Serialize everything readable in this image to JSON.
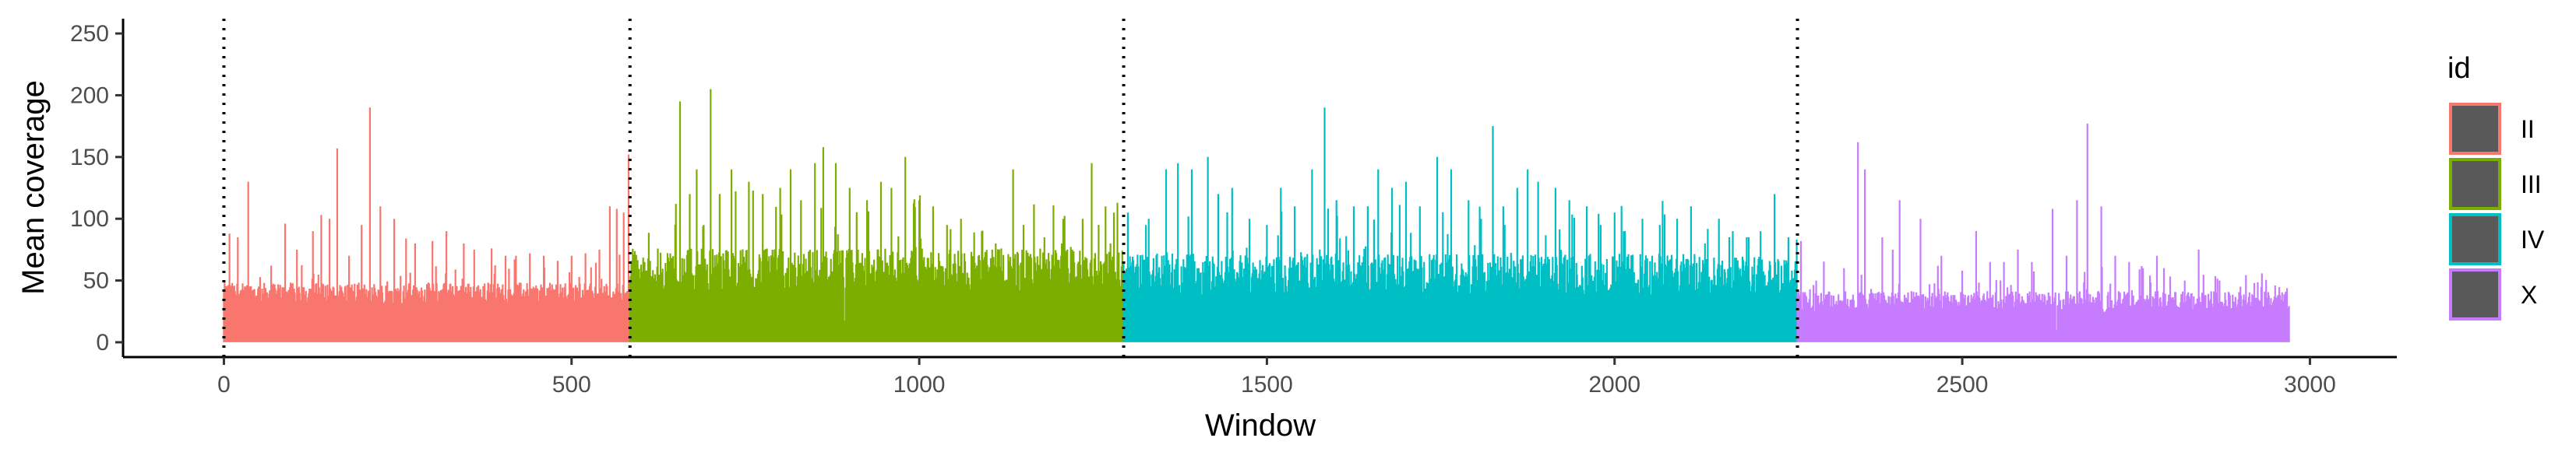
{
  "chart_data": {
    "type": "bar",
    "xlabel": "Window",
    "ylabel": "Mean coverage",
    "xlim": [
      -145,
      3125
    ],
    "ylim": [
      -12,
      262
    ],
    "x_ticks": [
      0,
      500,
      1000,
      1500,
      2000,
      2500,
      3000
    ],
    "y_ticks": [
      0,
      50,
      100,
      150,
      200,
      250
    ],
    "boundaries": [
      0,
      584,
      1294,
      2263
    ],
    "legend_title": "id",
    "legend_position": "right",
    "grid": false,
    "series": [
      {
        "name": "II",
        "color": "#F8766D",
        "start": 0,
        "end": 583,
        "base": 40,
        "spread": 14,
        "peaks": [
          [
            8,
            88
          ],
          [
            20,
            85
          ],
          [
            35,
            130
          ],
          [
            68,
            62
          ],
          [
            88,
            96
          ],
          [
            105,
            75
          ],
          [
            128,
            90
          ],
          [
            140,
            103
          ],
          [
            152,
            100
          ],
          [
            163,
            157
          ],
          [
            180,
            70
          ],
          [
            198,
            95
          ],
          [
            210,
            190
          ],
          [
            225,
            110
          ],
          [
            245,
            100
          ],
          [
            262,
            84
          ],
          [
            275,
            80
          ],
          [
            300,
            82
          ],
          [
            320,
            90
          ],
          [
            345,
            80
          ],
          [
            360,
            75
          ],
          [
            385,
            76
          ],
          [
            405,
            70
          ],
          [
            420,
            70
          ],
          [
            440,
            72
          ],
          [
            460,
            70
          ],
          [
            480,
            66
          ],
          [
            500,
            70
          ],
          [
            520,
            72
          ],
          [
            540,
            75
          ],
          [
            555,
            110
          ],
          [
            565,
            108
          ],
          [
            575,
            105
          ],
          [
            582,
            152
          ]
        ]
      },
      {
        "name": "III",
        "color": "#7CAE00",
        "start": 584,
        "end": 1293,
        "base": 58,
        "spread": 30,
        "peaks": [
          [
            590,
            70
          ],
          [
            605,
            65
          ],
          [
            620,
            55
          ],
          [
            650,
            112
          ],
          [
            656,
            195
          ],
          [
            670,
            120
          ],
          [
            680,
            140
          ],
          [
            690,
            95
          ],
          [
            700,
            205
          ],
          [
            713,
            120
          ],
          [
            730,
            140
          ],
          [
            755,
            130
          ],
          [
            775,
            120
          ],
          [
            800,
            125
          ],
          [
            815,
            140
          ],
          [
            830,
            115
          ],
          [
            850,
            145
          ],
          [
            862,
            158
          ],
          [
            880,
            145
          ],
          [
            900,
            125
          ],
          [
            925,
            115
          ],
          [
            945,
            130
          ],
          [
            960,
            125
          ],
          [
            980,
            150
          ],
          [
            1000,
            115
          ],
          [
            1020,
            110
          ],
          [
            1040,
            95
          ],
          [
            1060,
            100
          ],
          [
            1090,
            90
          ],
          [
            1110,
            80
          ],
          [
            1135,
            140
          ],
          [
            1150,
            95
          ],
          [
            1180,
            85
          ],
          [
            1205,
            80
          ],
          [
            1220,
            75
          ],
          [
            1235,
            100
          ],
          [
            1248,
            145
          ],
          [
            1258,
            95
          ],
          [
            1268,
            110
          ],
          [
            1275,
            80
          ],
          [
            1285,
            113
          ]
        ]
      },
      {
        "name": "IV",
        "color": "#00BFC4",
        "start": 1294,
        "end": 2262,
        "base": 55,
        "spread": 28,
        "peaks": [
          [
            1300,
            105
          ],
          [
            1330,
            100
          ],
          [
            1355,
            140
          ],
          [
            1372,
            145
          ],
          [
            1392,
            140
          ],
          [
            1415,
            150
          ],
          [
            1430,
            120
          ],
          [
            1450,
            125
          ],
          [
            1475,
            100
          ],
          [
            1500,
            95
          ],
          [
            1520,
            125
          ],
          [
            1540,
            110
          ],
          [
            1565,
            140
          ],
          [
            1583,
            190
          ],
          [
            1600,
            115
          ],
          [
            1625,
            110
          ],
          [
            1660,
            140
          ],
          [
            1680,
            125
          ],
          [
            1700,
            130
          ],
          [
            1720,
            110
          ],
          [
            1745,
            150
          ],
          [
            1765,
            140
          ],
          [
            1790,
            115
          ],
          [
            1808,
            100
          ],
          [
            1825,
            175
          ],
          [
            1840,
            110
          ],
          [
            1860,
            125
          ],
          [
            1875,
            140
          ],
          [
            1890,
            130
          ],
          [
            1915,
            125
          ],
          [
            1935,
            115
          ],
          [
            1960,
            110
          ],
          [
            1980,
            95
          ],
          [
            2000,
            105
          ],
          [
            2015,
            90
          ],
          [
            2040,
            100
          ],
          [
            2065,
            95
          ],
          [
            2090,
            100
          ],
          [
            2110,
            110
          ],
          [
            2130,
            80
          ],
          [
            2150,
            100
          ],
          [
            2170,
            90
          ],
          [
            2190,
            85
          ],
          [
            2210,
            90
          ],
          [
            2230,
            120
          ],
          [
            2250,
            85
          ]
        ]
      },
      {
        "name": "X",
        "color": "#C77CFF",
        "start": 2263,
        "end": 2970,
        "base": 33,
        "spread": 14,
        "peaks": [
          [
            2268,
            82
          ],
          [
            2290,
            50
          ],
          [
            2330,
            60
          ],
          [
            2350,
            162
          ],
          [
            2360,
            140
          ],
          [
            2385,
            85
          ],
          [
            2400,
            75
          ],
          [
            2410,
            115
          ],
          [
            2440,
            100
          ],
          [
            2470,
            70
          ],
          [
            2500,
            58
          ],
          [
            2520,
            90
          ],
          [
            2540,
            65
          ],
          [
            2560,
            65
          ],
          [
            2580,
            75
          ],
          [
            2600,
            65
          ],
          [
            2630,
            108
          ],
          [
            2650,
            70
          ],
          [
            2665,
            115
          ],
          [
            2680,
            177
          ],
          [
            2700,
            110
          ],
          [
            2720,
            70
          ],
          [
            2740,
            65
          ],
          [
            2760,
            60
          ],
          [
            2780,
            70
          ],
          [
            2790,
            60
          ],
          [
            2820,
            50
          ],
          [
            2840,
            75
          ],
          [
            2870,
            50
          ],
          [
            2900,
            45
          ],
          [
            2920,
            48
          ],
          [
            2950,
            46
          ]
        ]
      }
    ]
  }
}
